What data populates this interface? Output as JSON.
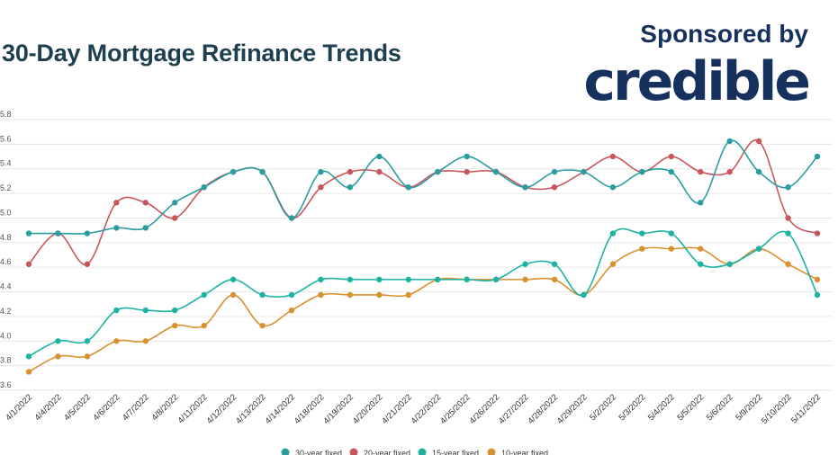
{
  "header": {
    "title": "30-Day Mortgage Refinance Trends",
    "sponsor_label": "Sponsored by",
    "sponsor_logo": "credible"
  },
  "colors": {
    "title": "#1d3f4f",
    "brand": "#17315e",
    "grid": "#e6e6e6"
  },
  "chart_data": {
    "type": "line",
    "title": "30-Day Mortgage Refinance Trends",
    "xlabel": "",
    "ylabel": "",
    "ylim": [
      3.6,
      5.8
    ],
    "yticks": [
      3.6,
      3.8,
      4.0,
      4.2,
      4.4,
      4.6,
      4.8,
      5.0,
      5.2,
      5.4,
      5.6,
      5.8
    ],
    "grid": true,
    "legend_position": "bottom",
    "categories": [
      "4/1/2022",
      "4/4/2022",
      "4/5/2022",
      "4/6/2022",
      "4/7/2022",
      "4/8/2022",
      "4/11/2022",
      "4/12/2022",
      "4/13/2022",
      "4/14/2022",
      "4/18/2022",
      "4/19/2022",
      "4/20/2022",
      "4/21/2022",
      "4/22/2022",
      "4/25/2022",
      "4/26/2022",
      "4/27/2022",
      "4/28/2022",
      "4/29/2022",
      "5/2/2022",
      "5/3/2022",
      "5/4/2022",
      "5/5/2022",
      "5/6/2022",
      "5/9/2022",
      "5/10/2022",
      "5/11/2022"
    ],
    "series": [
      {
        "name": "30-year fixed",
        "color": "#2a9da0",
        "values": [
          4.875,
          4.875,
          4.875,
          4.92,
          4.92,
          5.125,
          5.25,
          5.375,
          5.375,
          5.0,
          5.375,
          5.25,
          5.5,
          5.25,
          5.375,
          5.5,
          5.375,
          5.25,
          5.375,
          5.375,
          5.25,
          5.375,
          5.375,
          5.125,
          5.625,
          5.375,
          5.25,
          5.5
        ]
      },
      {
        "name": "20-year fixed",
        "color": "#c9565a",
        "values": [
          4.625,
          4.875,
          4.625,
          5.125,
          5.125,
          5.0,
          5.25,
          5.375,
          5.375,
          5.0,
          5.25,
          5.375,
          5.375,
          5.25,
          5.375,
          5.375,
          5.375,
          5.25,
          5.25,
          5.375,
          5.5,
          5.375,
          5.5,
          5.375,
          5.375,
          5.625,
          5.0,
          4.875
        ]
      },
      {
        "name": "15-year fixed",
        "color": "#1db3a3",
        "values": [
          3.875,
          4.0,
          4.0,
          4.25,
          4.25,
          4.25,
          4.375,
          4.5,
          4.375,
          4.375,
          4.5,
          4.5,
          4.5,
          4.5,
          4.5,
          4.5,
          4.5,
          4.625,
          4.625,
          4.375,
          4.875,
          4.875,
          4.875,
          4.625,
          4.625,
          4.75,
          4.875,
          4.375
        ]
      },
      {
        "name": "10-year fixed",
        "color": "#d9902f",
        "values": [
          3.75,
          3.875,
          3.875,
          4.0,
          4.0,
          4.125,
          4.125,
          4.375,
          4.125,
          4.25,
          4.375,
          4.375,
          4.375,
          4.375,
          4.5,
          4.5,
          4.5,
          4.5,
          4.5,
          4.375,
          4.625,
          4.75,
          4.75,
          4.75,
          4.625,
          4.75,
          4.625,
          4.5
        ]
      }
    ]
  }
}
